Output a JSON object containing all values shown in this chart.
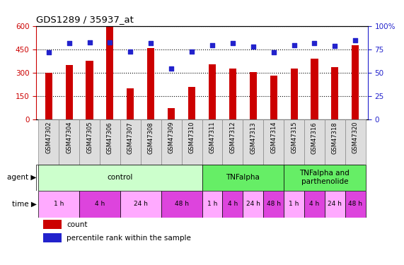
{
  "title": "GDS1289 / 35937_at",
  "samples": [
    "GSM47302",
    "GSM47304",
    "GSM47305",
    "GSM47306",
    "GSM47307",
    "GSM47308",
    "GSM47309",
    "GSM47310",
    "GSM47311",
    "GSM47312",
    "GSM47313",
    "GSM47314",
    "GSM47315",
    "GSM47316",
    "GSM47318",
    "GSM47320"
  ],
  "counts": [
    300,
    350,
    380,
    600,
    200,
    460,
    70,
    210,
    355,
    330,
    305,
    280,
    330,
    390,
    335,
    480
  ],
  "percentiles": [
    72,
    82,
    83,
    83,
    73,
    82,
    55,
    73,
    80,
    82,
    78,
    72,
    80,
    82,
    79,
    85
  ],
  "bar_color": "#cc0000",
  "dot_color": "#2222cc",
  "ylim_left": [
    0,
    600
  ],
  "ylim_right": [
    0,
    100
  ],
  "yticks_left": [
    0,
    150,
    300,
    450,
    600
  ],
  "yticks_right": [
    0,
    25,
    50,
    75,
    100
  ],
  "agent_groups": [
    {
      "label": "control",
      "start": 0,
      "end": 8,
      "color": "#ccffcc"
    },
    {
      "label": "TNFalpha",
      "start": 8,
      "end": 12,
      "color": "#66ee66"
    },
    {
      "label": "TNFalpha and\nparthenolide",
      "start": 12,
      "end": 16,
      "color": "#66ee66"
    }
  ],
  "time_groups": [
    {
      "label": "1 h",
      "start": 0,
      "end": 2,
      "color": "#ffaaff"
    },
    {
      "label": "4 h",
      "start": 2,
      "end": 4,
      "color": "#dd44dd"
    },
    {
      "label": "24 h",
      "start": 4,
      "end": 6,
      "color": "#ffaaff"
    },
    {
      "label": "48 h",
      "start": 6,
      "end": 8,
      "color": "#dd44dd"
    },
    {
      "label": "1 h",
      "start": 8,
      "end": 9,
      "color": "#ffaaff"
    },
    {
      "label": "4 h",
      "start": 9,
      "end": 10,
      "color": "#dd44dd"
    },
    {
      "label": "24 h",
      "start": 10,
      "end": 11,
      "color": "#ffaaff"
    },
    {
      "label": "48 h",
      "start": 11,
      "end": 12,
      "color": "#dd44dd"
    },
    {
      "label": "1 h",
      "start": 12,
      "end": 13,
      "color": "#ffaaff"
    },
    {
      "label": "4 h",
      "start": 13,
      "end": 14,
      "color": "#dd44dd"
    },
    {
      "label": "24 h",
      "start": 14,
      "end": 15,
      "color": "#ffaaff"
    },
    {
      "label": "48 h",
      "start": 15,
      "end": 16,
      "color": "#dd44dd"
    }
  ],
  "legend_count_color": "#cc0000",
  "legend_dot_color": "#2222cc",
  "background_color": "#ffffff",
  "axis_label_color_left": "#cc0000",
  "axis_label_color_right": "#2222cc",
  "xtick_bg_color": "#dddddd",
  "bar_width": 0.35
}
